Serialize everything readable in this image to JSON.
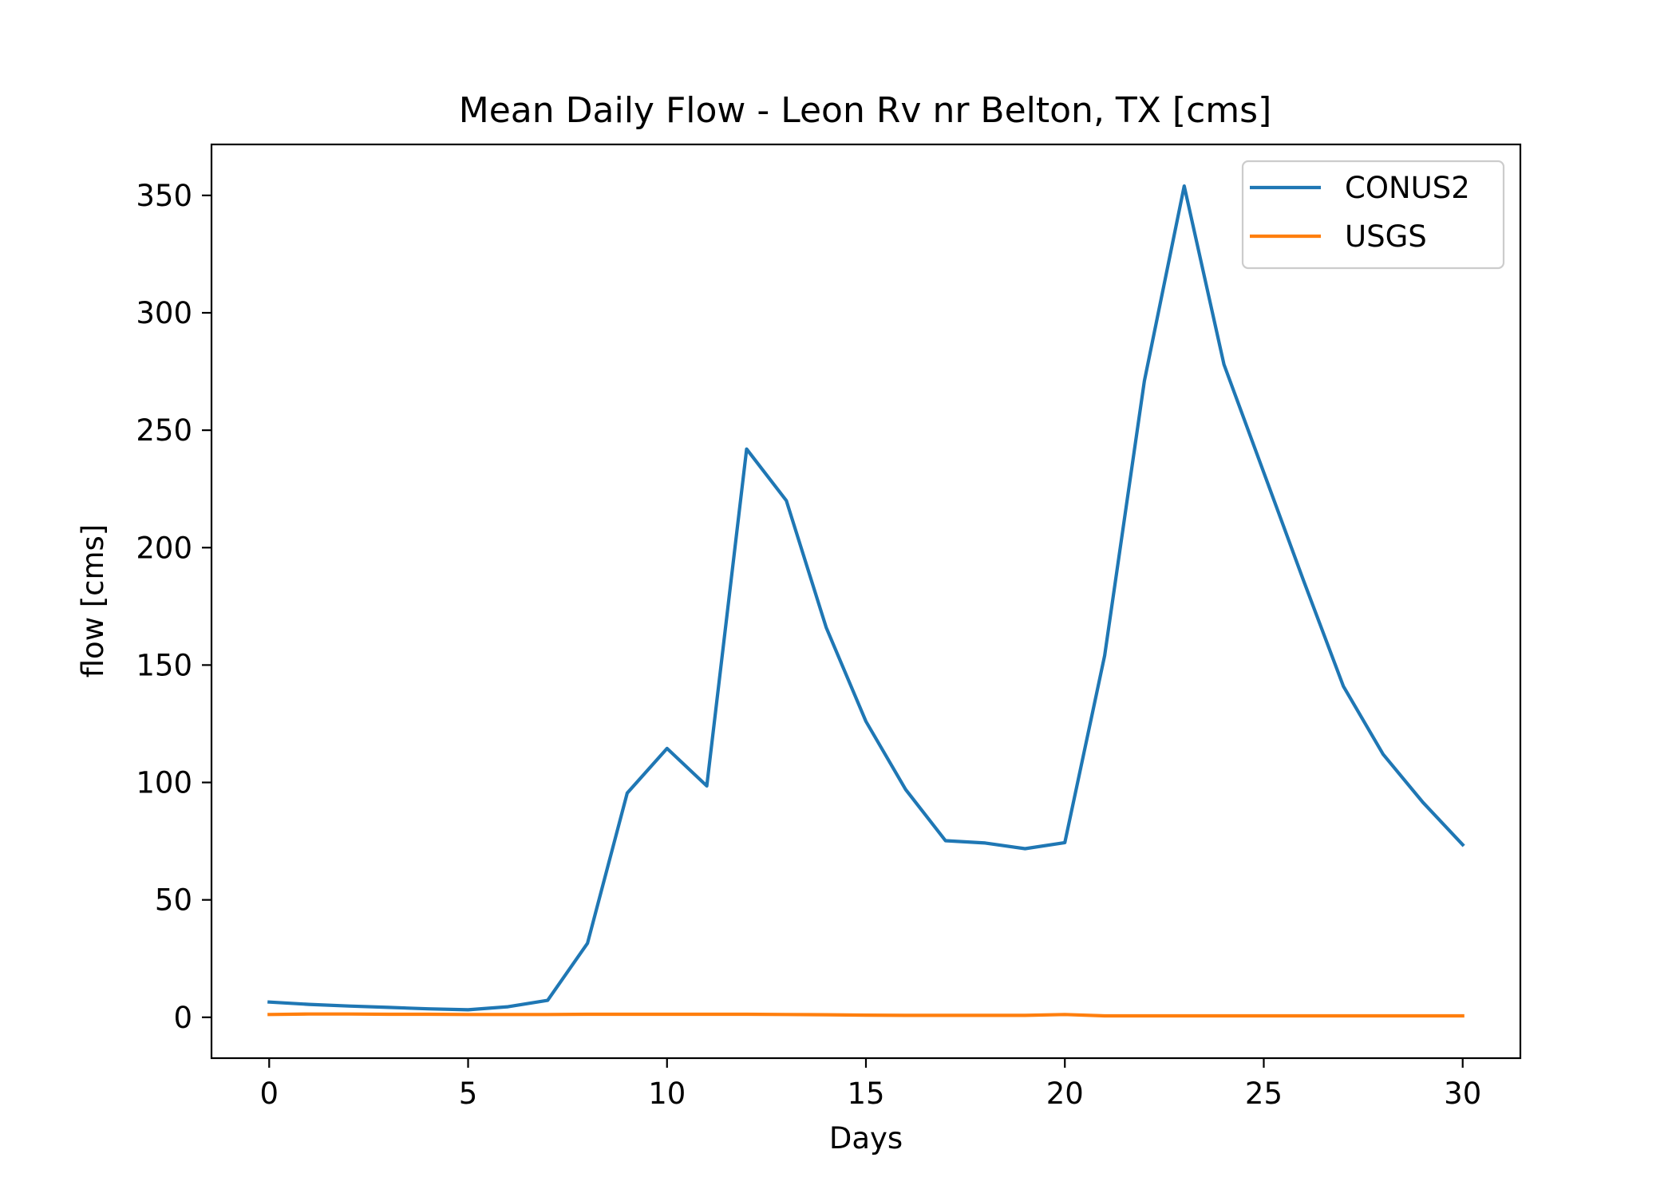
{
  "chart_data": {
    "type": "line",
    "title": "Mean Daily Flow - Leon Rv nr Belton, TX [cms]",
    "xlabel": "Days",
    "ylabel": "flow [cms]",
    "xlim": [
      -1.45,
      31.45
    ],
    "ylim": [
      -17.4,
      371.7
    ],
    "xticks": [
      0,
      5,
      10,
      15,
      20,
      25,
      30
    ],
    "yticks": [
      0,
      50,
      100,
      150,
      200,
      250,
      300,
      350
    ],
    "grid": false,
    "legend_position": "upper right",
    "x": [
      0,
      1,
      2,
      3,
      4,
      5,
      6,
      7,
      8,
      9,
      10,
      11,
      12,
      13,
      14,
      15,
      16,
      17,
      18,
      19,
      20,
      21,
      22,
      23,
      24,
      25,
      26,
      27,
      28,
      29,
      30
    ],
    "series": [
      {
        "name": "CONUS2",
        "color": "#1f77b4",
        "values": [
          6.5,
          5.5,
          4.8,
          4.2,
          3.6,
          3.2,
          4.5,
          7.2,
          31.5,
          95.5,
          114.5,
          98.5,
          242,
          220,
          166,
          126,
          97,
          75.2,
          74.2,
          71.8,
          74.4,
          154,
          271,
          354,
          278,
          232,
          186,
          141,
          112,
          91.5,
          73.5
        ]
      },
      {
        "name": "USGS",
        "color": "#ff7f0e",
        "values": [
          1.2,
          1.4,
          1.4,
          1.3,
          1.3,
          1.2,
          1.2,
          1.2,
          1.3,
          1.3,
          1.3,
          1.3,
          1.3,
          1.2,
          1.1,
          0.9,
          0.8,
          0.8,
          0.8,
          0.8,
          1.2,
          0.6,
          0.6,
          0.6,
          0.6,
          0.6,
          0.6,
          0.6,
          0.6,
          0.6,
          0.6
        ]
      }
    ]
  }
}
